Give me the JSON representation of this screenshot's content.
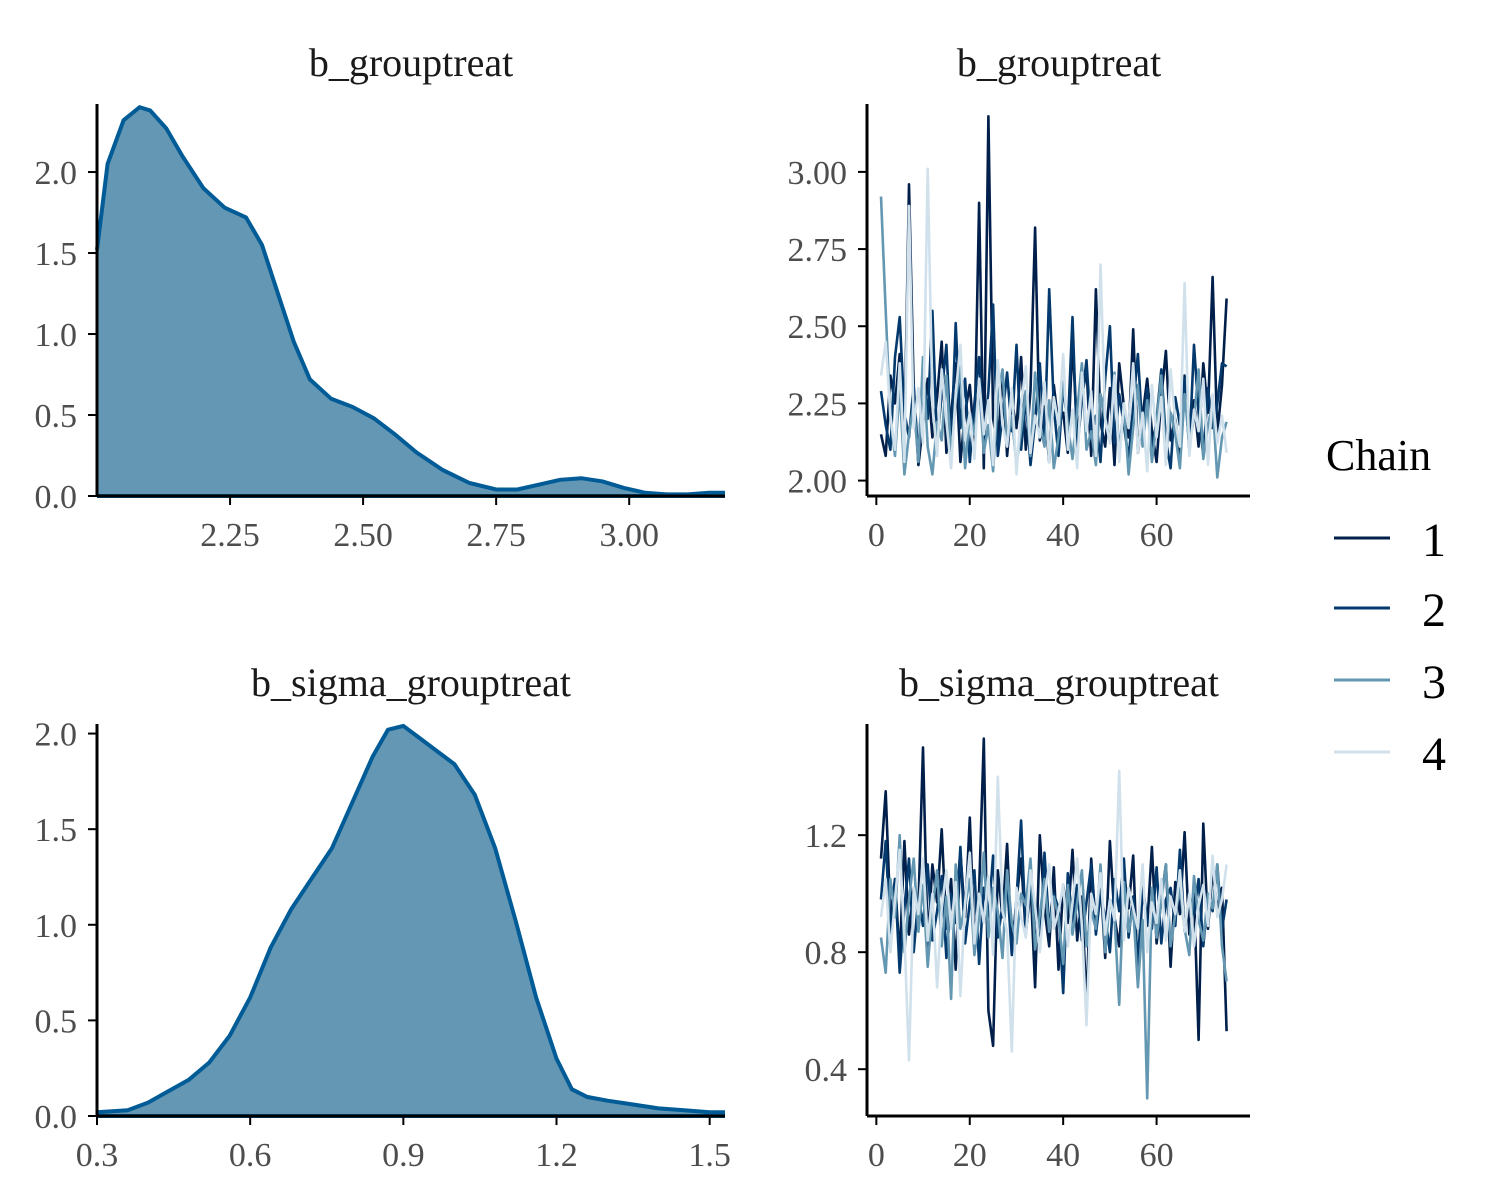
{
  "chart_data": [
    {
      "type": "area",
      "title": "b_grouptreat",
      "xlabel": "",
      "ylabel": "",
      "xlim": [
        2.0,
        3.18
      ],
      "ylim": [
        0,
        2.42
      ],
      "x_ticks": [
        "2.25",
        "2.50",
        "2.75",
        "3.00"
      ],
      "y_ticks": [
        "0.0",
        "0.5",
        "1.0",
        "1.5",
        "2.0"
      ],
      "fill_color": "#6497b4",
      "line_color": "#005b96",
      "x": [
        2.0,
        2.02,
        2.05,
        2.08,
        2.1,
        2.13,
        2.16,
        2.2,
        2.24,
        2.28,
        2.31,
        2.34,
        2.37,
        2.4,
        2.44,
        2.48,
        2.52,
        2.56,
        2.6,
        2.65,
        2.7,
        2.75,
        2.79,
        2.83,
        2.87,
        2.91,
        2.95,
        2.99,
        3.03,
        3.07,
        3.11,
        3.15,
        3.18
      ],
      "y": [
        1.52,
        2.05,
        2.32,
        2.4,
        2.38,
        2.27,
        2.1,
        1.9,
        1.78,
        1.72,
        1.55,
        1.25,
        0.95,
        0.72,
        0.6,
        0.55,
        0.48,
        0.38,
        0.27,
        0.16,
        0.08,
        0.04,
        0.04,
        0.07,
        0.1,
        0.11,
        0.09,
        0.05,
        0.02,
        0.01,
        0.01,
        0.02,
        0.02
      ]
    },
    {
      "type": "line",
      "title": "b_grouptreat",
      "xlabel": "",
      "ylabel": "",
      "xlim": [
        -2,
        80
      ],
      "ylim": [
        1.95,
        3.22
      ],
      "x_ticks": [
        "0",
        "20",
        "40",
        "60"
      ],
      "y_ticks": [
        "2.00",
        "2.25",
        "2.50",
        "2.75",
        "3.00"
      ],
      "iterations": 75,
      "series": [
        {
          "name": "1",
          "color": "#011f4b",
          "values": [
            2.15,
            2.08,
            2.34,
            2.25,
            2.41,
            2.12,
            2.96,
            2.3,
            2.05,
            2.18,
            2.33,
            2.14,
            2.27,
            2.45,
            2.09,
            2.21,
            2.38,
            2.06,
            2.22,
            2.31,
            2.12,
            2.9,
            2.04,
            3.18,
            2.2,
            2.11,
            2.35,
            2.08,
            2.26,
            2.17,
            2.4,
            2.1,
            2.29,
            2.82,
            2.13,
            2.24,
            2.06,
            2.31,
            2.18,
            2.22,
            2.09,
            2.45,
            2.15,
            2.27,
            2.36,
            2.08,
            2.62,
            2.19,
            2.11,
            2.3,
            2.05,
            2.38,
            2.24,
            2.14,
            2.49,
            2.09,
            2.21,
            2.33,
            2.16,
            2.06,
            2.27,
            2.42,
            2.13,
            2.2,
            2.08,
            2.34,
            2.18,
            2.26,
            2.11,
            2.38,
            2.22,
            2.66,
            2.15,
            2.31,
            2.59
          ]
        },
        {
          "name": "2",
          "color": "#03396c",
          "values": [
            2.29,
            2.18,
            2.1,
            2.4,
            2.53,
            2.22,
            2.14,
            2.31,
            2.07,
            2.36,
            2.2,
            2.55,
            2.12,
            2.28,
            2.44,
            2.09,
            2.51,
            2.17,
            2.33,
            2.06,
            2.25,
            2.4,
            2.13,
            2.29,
            2.57,
            2.08,
            2.21,
            2.35,
            2.16,
            2.44,
            2.1,
            2.27,
            2.05,
            2.19,
            2.38,
            2.12,
            2.62,
            2.24,
            2.08,
            2.31,
            2.17,
            2.53,
            2.1,
            2.26,
            2.39,
            2.14,
            2.21,
            2.06,
            2.33,
            2.5,
            2.12,
            2.28,
            2.18,
            2.07,
            2.24,
            2.41,
            2.15,
            2.3,
            2.09,
            2.2,
            2.36,
            2.13,
            2.04,
            2.27,
            2.18,
            2.33,
            2.1,
            2.44,
            2.22,
            2.08,
            2.3,
            2.17,
            2.25,
            2.38,
            2.37
          ]
        },
        {
          "name": "3",
          "color": "#6497b1",
          "values": [
            2.92,
            2.55,
            2.2,
            2.08,
            2.3,
            2.02,
            2.15,
            2.25,
            2.06,
            2.4,
            2.11,
            2.02,
            2.19,
            2.13,
            2.34,
            2.08,
            2.26,
            2.37,
            2.04,
            2.22,
            2.15,
            2.31,
            2.09,
            2.18,
            2.03,
            2.27,
            2.36,
            2.12,
            2.21,
            2.05,
            2.16,
            2.29,
            2.08,
            2.35,
            2.19,
            2.11,
            2.26,
            2.04,
            2.14,
            2.32,
            2.18,
            2.07,
            2.23,
            2.38,
            2.1,
            2.16,
            2.05,
            2.28,
            2.2,
            2.13,
            2.35,
            2.09,
            2.24,
            2.02,
            2.17,
            2.31,
            2.11,
            2.26,
            2.06,
            2.19,
            2.34,
            2.08,
            2.22,
            2.15,
            2.04,
            2.28,
            2.12,
            2.2,
            2.36,
            2.07,
            2.18,
            2.25,
            2.01,
            2.14,
            2.19
          ]
        },
        {
          "name": "4",
          "color": "#d0e1ec",
          "values": [
            2.34,
            2.45,
            2.21,
            2.1,
            2.38,
            2.06,
            2.89,
            2.17,
            2.3,
            2.12,
            3.01,
            2.25,
            2.08,
            2.36,
            2.19,
            2.04,
            2.28,
            2.44,
            2.13,
            2.22,
            2.07,
            2.33,
            2.15,
            2.26,
            2.05,
            2.39,
            2.18,
            2.11,
            2.3,
            2.02,
            2.24,
            2.37,
            2.09,
            2.21,
            2.14,
            2.32,
            2.06,
            2.27,
            2.18,
            2.41,
            2.1,
            2.23,
            2.04,
            2.35,
            2.16,
            2.29,
            2.08,
            2.7,
            2.2,
            2.12,
            2.34,
            2.06,
            2.25,
            2.17,
            2.38,
            2.09,
            2.22,
            2.03,
            2.31,
            2.14,
            2.27,
            2.05,
            2.36,
            2.19,
            2.11,
            2.64,
            2.08,
            2.23,
            2.16,
            2.33,
            2.05,
            2.28,
            2.12,
            2.21,
            2.09
          ]
        }
      ]
    },
    {
      "type": "area",
      "title": "b_sigma_grouptreat",
      "xlabel": "",
      "ylabel": "",
      "xlim": [
        0.3,
        1.53
      ],
      "ylim": [
        0,
        2.05
      ],
      "x_ticks": [
        "0.3",
        "0.6",
        "0.9",
        "1.2",
        "1.5"
      ],
      "y_ticks": [
        "0.0",
        "0.5",
        "1.0",
        "1.5",
        "2.0"
      ],
      "fill_color": "#6497b4",
      "line_color": "#005b96",
      "x": [
        0.3,
        0.36,
        0.4,
        0.44,
        0.48,
        0.52,
        0.56,
        0.6,
        0.64,
        0.68,
        0.72,
        0.76,
        0.8,
        0.84,
        0.87,
        0.9,
        0.93,
        0.96,
        1.0,
        1.04,
        1.08,
        1.12,
        1.16,
        1.2,
        1.23,
        1.26,
        1.3,
        1.35,
        1.4,
        1.45,
        1.5,
        1.53
      ],
      "y": [
        0.02,
        0.03,
        0.07,
        0.13,
        0.19,
        0.28,
        0.42,
        0.62,
        0.88,
        1.08,
        1.24,
        1.4,
        1.64,
        1.88,
        2.02,
        2.04,
        1.98,
        1.92,
        1.84,
        1.68,
        1.4,
        1.02,
        0.62,
        0.3,
        0.14,
        0.1,
        0.08,
        0.06,
        0.04,
        0.03,
        0.02,
        0.02
      ]
    },
    {
      "type": "line",
      "title": "b_sigma_grouptreat",
      "xlabel": "",
      "ylabel": "",
      "xlim": [
        -2,
        80
      ],
      "ylim": [
        0.24,
        1.58
      ],
      "x_ticks": [
        "0",
        "20",
        "40",
        "60"
      ],
      "y_ticks": [
        "0.4",
        "0.8",
        "1.2"
      ],
      "iterations": 75,
      "series": [
        {
          "name": "1",
          "color": "#011f4b",
          "values": [
            1.12,
            1.35,
            0.92,
            1.05,
            0.78,
            1.18,
            0.86,
            1.02,
            0.95,
            1.5,
            0.82,
            1.1,
            0.97,
            1.22,
            0.88,
            1.05,
            0.74,
            1.14,
            0.92,
            1.26,
            0.84,
            1.01,
            1.53,
            0.6,
            0.48,
            1.08,
            0.92,
            1.17,
            0.8,
            0.98,
            1.12,
            0.86,
            1.04,
            0.68,
            1.2,
            0.95,
            0.82,
            1.09,
            0.74,
            1.03,
            0.9,
            1.15,
            0.84,
            0.99,
            0.61,
            1.12,
            0.88,
            1.05,
            0.78,
            1.18,
            0.92,
            0.82,
            1.07,
            0.95,
            1.13,
            0.7,
            1.02,
            0.89,
            1.16,
            0.83,
            0.98,
            1.1,
            0.75,
            1.04,
            0.93,
            1.21,
            0.86,
            1.0,
            0.5,
            1.24,
            0.88,
            1.08,
            0.95,
            1.02,
            0.53
          ]
        },
        {
          "name": "2",
          "color": "#03396c",
          "values": [
            0.98,
            1.18,
            0.86,
            1.05,
            0.73,
            0.95,
            1.12,
            0.8,
            0.99,
            0.89,
            1.1,
            0.84,
            0.94,
            1.06,
            0.78,
            1.0,
            0.9,
            1.16,
            0.83,
            0.97,
            1.08,
            0.76,
            1.02,
            0.92,
            1.13,
            0.85,
            0.96,
            1.04,
            0.79,
            0.98,
            1.25,
            0.87,
            1.01,
            0.93,
            0.81,
            1.14,
            0.88,
            1.0,
            0.95,
            0.66,
            1.07,
            0.9,
            1.03,
            0.84,
            0.97,
            1.1,
            0.86,
            1.0,
            0.92,
            0.8,
            1.05,
            0.94,
            1.12,
            0.85,
            0.99,
            0.76,
            1.03,
            0.91,
            0.88,
            1.09,
            0.83,
            0.98,
            1.02,
            0.89,
            1.15,
            0.87,
            0.99,
            0.93,
            1.05,
            0.82,
            1.0,
            0.94,
            1.1,
            0.88,
            0.98
          ]
        },
        {
          "name": "3",
          "color": "#6497b1",
          "values": [
            0.85,
            0.73,
            1.05,
            0.92,
            1.2,
            0.8,
            0.98,
            1.12,
            0.87,
            1.03,
            0.75,
            0.95,
            1.08,
            0.82,
            0.99,
            0.64,
            1.1,
            0.88,
            0.96,
            1.05,
            0.79,
            0.92,
            1.14,
            0.85,
            1.02,
            0.94,
            0.78,
            1.08,
            0.9,
            0.83,
            1.0,
            0.96,
            1.12,
            0.81,
            0.93,
            1.05,
            0.87,
            0.99,
            0.92,
            0.76,
            1.03,
            0.86,
            0.97,
            1.08,
            0.82,
            0.94,
            0.88,
            1.1,
            0.8,
            0.98,
            0.92,
            0.62,
            1.04,
            0.87,
            0.95,
            0.68,
            0.91,
            0.3,
            1.02,
            0.85,
            0.97,
            1.1,
            0.82,
            0.93,
            1.02,
            0.88,
            0.79,
            1.06,
            0.91,
            0.84,
            1.0,
            0.95,
            1.1,
            0.82,
            0.7
          ]
        },
        {
          "name": "4",
          "color": "#d0e1ec",
          "values": [
            0.92,
            1.05,
            0.8,
            0.98,
            1.15,
            0.86,
            0.43,
            1.02,
            0.93,
            1.12,
            0.84,
            1.0,
            0.68,
            0.95,
            1.08,
            0.88,
            1.04,
            0.65,
            0.97,
            1.14,
            0.83,
            1.0,
            0.9,
            1.06,
            0.79,
            1.4,
            0.94,
            0.87,
            0.46,
            1.02,
            0.92,
            0.85,
            1.08,
            0.96,
            0.8,
            0.99,
            1.1,
            0.88,
            0.94,
            1.03,
            0.82,
            0.97,
            1.12,
            0.89,
            0.55,
            1.0,
            0.93,
            1.07,
            0.86,
            0.98,
            0.91,
            1.42,
            0.84,
            1.02,
            0.95,
            0.88,
            1.1,
            0.8,
            0.97,
            0.9,
            1.05,
            0.84,
            0.99,
            0.93,
            1.08,
            0.87,
            1.0,
            0.82,
            0.96,
            1.03,
            0.89,
            1.13,
            0.92,
            0.98,
            1.1
          ]
        }
      ]
    }
  ],
  "legend": {
    "title": "Chain",
    "placement": "right",
    "items": [
      {
        "label": "1",
        "color": "#011f4b"
      },
      {
        "label": "2",
        "color": "#03396c"
      },
      {
        "label": "3",
        "color": "#6497b1"
      },
      {
        "label": "4",
        "color": "#d0e1ec"
      }
    ]
  }
}
